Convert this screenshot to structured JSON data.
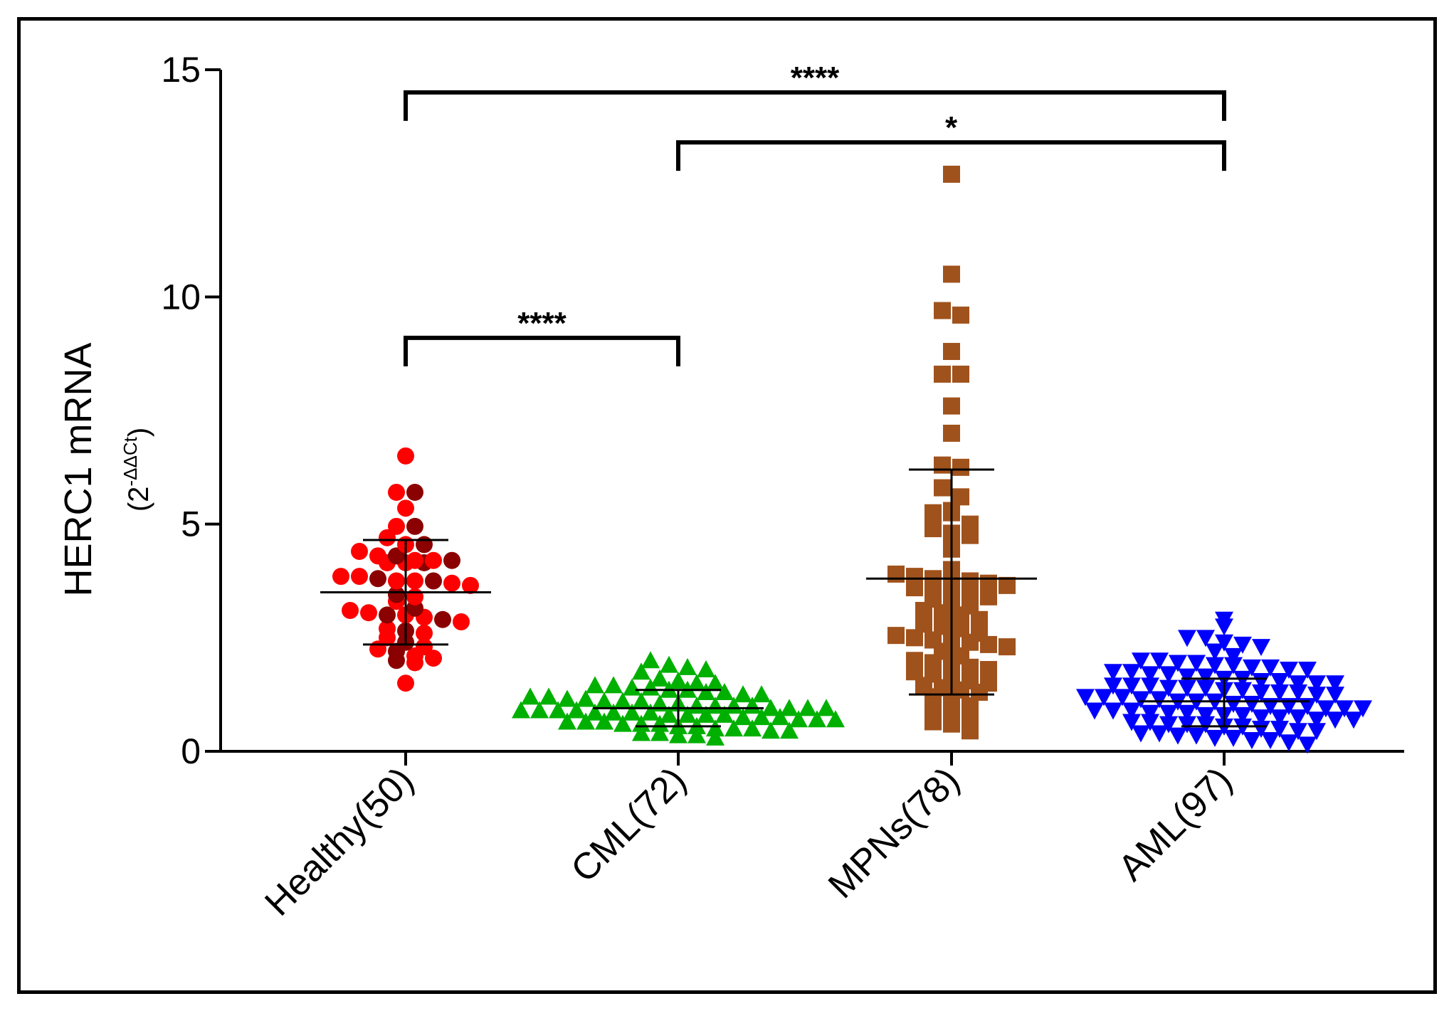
{
  "chart_data": {
    "type": "scatter",
    "ylabel": "HERC1 mRNA",
    "ylabel_unit_base": "(2",
    "ylabel_unit_exp": "-ΔΔCt",
    "ylabel_unit_close": ")",
    "ylim": [
      0,
      15
    ],
    "yticks": [
      "0",
      "5",
      "10",
      "15"
    ],
    "categories": [
      "Healthy(50)",
      "CML(72)",
      "MPNs(78)",
      "AML(97)"
    ],
    "grid": false,
    "legend": "none",
    "groups": [
      {
        "category": "Healthy(50)",
        "marker": "circle",
        "color": "#ff0000",
        "color_alt": "#8b0000",
        "mean": 3.5,
        "sd_low": 2.35,
        "sd_high": 4.65,
        "y": [
          6.5,
          5.7,
          5.7,
          5.35,
          4.95,
          4.95,
          4.7,
          4.55,
          4.55,
          4.4,
          4.3,
          4.3,
          4.2,
          4.2,
          4.2,
          4.15,
          4.15,
          4.15,
          3.85,
          3.85,
          3.8,
          3.75,
          3.75,
          3.75,
          3.7,
          3.65,
          3.45,
          3.4,
          3.3,
          3.15,
          3.1,
          3.05,
          3.0,
          3.0,
          2.95,
          2.9,
          2.85,
          2.7,
          2.65,
          2.6,
          2.5,
          2.4,
          2.3,
          2.25,
          2.2,
          2.1,
          2.05,
          2.0,
          1.95,
          1.5
        ]
      },
      {
        "category": "CML(72)",
        "marker": "triangle-up",
        "color": "#00b000",
        "mean": 0.95,
        "sd_low": 0.55,
        "sd_high": 1.35,
        "y": [
          2.0,
          1.9,
          1.85,
          1.8,
          1.75,
          1.6,
          1.55,
          1.5,
          1.5,
          1.45,
          1.45,
          1.4,
          1.4,
          1.35,
          1.35,
          1.3,
          1.3,
          1.25,
          1.25,
          1.2,
          1.2,
          1.15,
          1.15,
          1.1,
          1.1,
          1.1,
          1.05,
          1.05,
          1.0,
          1.0,
          1.0,
          1.0,
          0.95,
          0.95,
          0.95,
          0.95,
          0.9,
          0.9,
          0.9,
          0.9,
          0.85,
          0.85,
          0.85,
          0.85,
          0.8,
          0.8,
          0.8,
          0.8,
          0.75,
          0.75,
          0.75,
          0.7,
          0.7,
          0.7,
          0.65,
          0.65,
          0.65,
          0.6,
          0.6,
          0.6,
          0.55,
          0.55,
          0.5,
          0.5,
          0.5,
          0.45,
          0.45,
          0.4,
          0.4,
          0.35,
          0.35,
          0.3
        ]
      },
      {
        "category": "MPNs(78)",
        "marker": "square",
        "color": "#a0521c",
        "mean": 3.8,
        "sd_low": 1.25,
        "sd_high": 6.2,
        "y": [
          12.7,
          10.5,
          9.7,
          9.6,
          8.8,
          8.3,
          8.3,
          7.6,
          7.0,
          6.3,
          6.25,
          5.8,
          5.6,
          5.3,
          5.25,
          5.25,
          5.0,
          4.9,
          4.8,
          4.75,
          4.5,
          4.45,
          4.0,
          3.9,
          3.85,
          3.8,
          3.8,
          3.75,
          3.7,
          3.65,
          3.6,
          3.55,
          3.5,
          3.45,
          3.4,
          3.35,
          3.3,
          3.2,
          3.1,
          3.05,
          3.0,
          2.9,
          2.8,
          2.75,
          2.7,
          2.6,
          2.55,
          2.5,
          2.45,
          2.45,
          2.4,
          2.35,
          2.3,
          2.2,
          2.1,
          2.0,
          1.95,
          1.9,
          1.85,
          1.8,
          1.75,
          1.7,
          1.65,
          1.55,
          1.5,
          1.45,
          1.4,
          1.35,
          1.3,
          1.2,
          1.1,
          1.0,
          0.9,
          0.8,
          0.75,
          0.65,
          0.6,
          0.45
        ]
      },
      {
        "category": "AML(97)",
        "marker": "triangle-down",
        "color": "#0000ff",
        "mean": 1.1,
        "sd_low": 0.55,
        "sd_high": 1.6,
        "y": [
          2.9,
          2.75,
          2.5,
          2.5,
          2.4,
          2.35,
          2.3,
          2.2,
          2.1,
          2.0,
          2.0,
          1.95,
          1.95,
          1.9,
          1.9,
          1.85,
          1.85,
          1.8,
          1.8,
          1.75,
          1.75,
          1.7,
          1.7,
          1.65,
          1.65,
          1.6,
          1.6,
          1.55,
          1.55,
          1.5,
          1.5,
          1.5,
          1.45,
          1.45,
          1.45,
          1.4,
          1.4,
          1.4,
          1.35,
          1.35,
          1.3,
          1.3,
          1.3,
          1.25,
          1.25,
          1.2,
          1.2,
          1.2,
          1.15,
          1.15,
          1.1,
          1.1,
          1.1,
          1.05,
          1.05,
          1.0,
          1.0,
          1.0,
          0.95,
          0.95,
          0.95,
          0.9,
          0.9,
          0.9,
          0.85,
          0.85,
          0.85,
          0.8,
          0.8,
          0.8,
          0.75,
          0.75,
          0.75,
          0.7,
          0.7,
          0.7,
          0.65,
          0.65,
          0.6,
          0.6,
          0.6,
          0.55,
          0.55,
          0.5,
          0.5,
          0.45,
          0.45,
          0.4,
          0.4,
          0.35,
          0.35,
          0.3,
          0.3,
          0.25,
          0.25,
          0.2,
          0.15
        ]
      }
    ],
    "significance": [
      {
        "from": "Healthy(50)",
        "to": "AML(97)",
        "y": 14.5,
        "label": "****"
      },
      {
        "from": "CML(72)",
        "to": "AML(97)",
        "y": 13.4,
        "label": "*"
      },
      {
        "from": "Healthy(50)",
        "to": "CML(72)",
        "y": 9.1,
        "label": "****"
      }
    ]
  }
}
